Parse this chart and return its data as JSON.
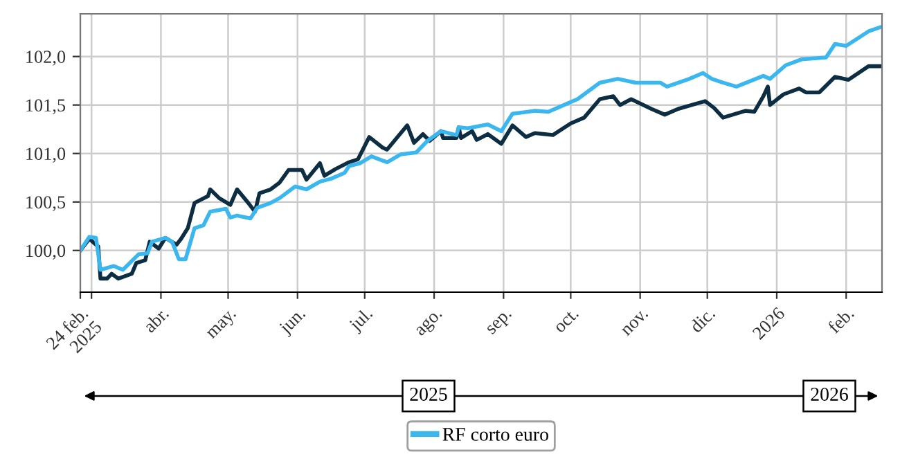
{
  "chart_data": {
    "type": "line",
    "xlim": [
      "2025-02-24",
      "2026-02-17"
    ],
    "ylim": [
      99.57,
      102.44
    ],
    "yticks": [
      {
        "value": 100.0,
        "label": "100,0"
      },
      {
        "value": 100.5,
        "label": "100,5"
      },
      {
        "value": 101.0,
        "label": "101,0"
      },
      {
        "value": 101.5,
        "label": "101,5"
      },
      {
        "value": 102.0,
        "label": "102,0"
      }
    ],
    "xticks": [
      {
        "value": "2025-02-24",
        "label": "24 feb.\n2025"
      },
      {
        "value": "2025-03-01",
        "label": null
      },
      {
        "value": "2025-04-01",
        "label": "abr."
      },
      {
        "value": "2025-05-01",
        "label": "may."
      },
      {
        "value": "2025-06-01",
        "label": "jun."
      },
      {
        "value": "2025-07-01",
        "label": "jul."
      },
      {
        "value": "2025-08-01",
        "label": "ago."
      },
      {
        "value": "2025-09-01",
        "label": "sep."
      },
      {
        "value": "2025-10-01",
        "label": "oct."
      },
      {
        "value": "2025-11-01",
        "label": "nov."
      },
      {
        "value": "2025-12-01",
        "label": "dic."
      },
      {
        "value": "2026-01-01",
        "label": "2026"
      },
      {
        "value": "2026-02-01",
        "label": "feb."
      }
    ],
    "grid": true,
    "legend": "bottom",
    "annotations": [
      "2025",
      "2026"
    ],
    "series": [
      {
        "color": "#0d2d42",
        "x": [
          "2025-02-24",
          "2025-02-28",
          "2025-03-03",
          "2025-03-04",
          "2025-03-05",
          "2025-03-08",
          "2025-03-10",
          "2025-03-13",
          "2025-03-19",
          "2025-03-21",
          "2025-03-25",
          "2025-03-27",
          "2025-03-31",
          "2025-04-03",
          "2025-04-08",
          "2025-04-10",
          "2025-04-13",
          "2025-04-16",
          "2025-04-22",
          "2025-04-23",
          "2025-04-27",
          "2025-05-02",
          "2025-05-05",
          "2025-05-10",
          "2025-05-13",
          "2025-05-15",
          "2025-05-20",
          "2025-05-24",
          "2025-05-28",
          "2025-06-03",
          "2025-06-05",
          "2025-06-11",
          "2025-06-13",
          "2025-06-18",
          "2025-06-24",
          "2025-06-28",
          "2025-07-03",
          "2025-07-09",
          "2025-07-11",
          "2025-07-20",
          "2025-07-23",
          "2025-07-27",
          "2025-07-30",
          "2025-08-04",
          "2025-08-05",
          "2025-08-11",
          "2025-08-12",
          "2025-08-13",
          "2025-08-18",
          "2025-08-20",
          "2025-08-25",
          "2025-08-31",
          "2025-09-05",
          "2025-09-11",
          "2025-09-15",
          "2025-09-23",
          "2025-10-01",
          "2025-10-07",
          "2025-10-14",
          "2025-10-20",
          "2025-10-23",
          "2025-10-28",
          "2025-11-06",
          "2025-11-12",
          "2025-11-18",
          "2025-11-30",
          "2025-12-04",
          "2025-12-08",
          "2025-12-18",
          "2025-12-22",
          "2025-12-26",
          "2025-12-28",
          "2025-12-29",
          "2026-01-04",
          "2026-01-11",
          "2026-01-14",
          "2026-01-20",
          "2026-01-27",
          "2026-02-02",
          "2026-02-11",
          "2026-02-16"
        ],
        "values": [
          100.0,
          100.12,
          100.06,
          100.04,
          99.71,
          99.71,
          99.76,
          99.71,
          99.76,
          99.87,
          99.9,
          100.09,
          100.02,
          100.13,
          100.06,
          100.12,
          100.23,
          100.49,
          100.56,
          100.63,
          100.54,
          100.47,
          100.63,
          100.49,
          100.4,
          100.59,
          100.63,
          100.7,
          100.83,
          100.83,
          100.73,
          100.9,
          100.77,
          100.84,
          100.91,
          100.94,
          101.17,
          101.06,
          101.04,
          101.29,
          101.11,
          101.2,
          101.13,
          101.23,
          101.16,
          101.16,
          101.27,
          101.16,
          101.23,
          101.14,
          101.2,
          101.1,
          101.29,
          101.17,
          101.21,
          101.19,
          101.31,
          101.37,
          101.56,
          101.59,
          101.5,
          101.56,
          101.46,
          101.4,
          101.46,
          101.54,
          101.47,
          101.37,
          101.44,
          101.43,
          101.59,
          101.69,
          101.5,
          101.61,
          101.67,
          101.63,
          101.63,
          101.79,
          101.76,
          101.9,
          101.9
        ]
      },
      {
        "name": "RF corto euro",
        "color": "#3bb7f0",
        "x": [
          "2025-02-24",
          "2025-02-28",
          "2025-03-03",
          "2025-03-05",
          "2025-03-11",
          "2025-03-15",
          "2025-03-22",
          "2025-03-26",
          "2025-03-28",
          "2025-04-03",
          "2025-04-06",
          "2025-04-09",
          "2025-04-12",
          "2025-04-16",
          "2025-04-20",
          "2025-04-23",
          "2025-04-30",
          "2025-05-02",
          "2025-05-05",
          "2025-05-11",
          "2025-05-14",
          "2025-05-20",
          "2025-05-24",
          "2025-05-31",
          "2025-06-05",
          "2025-06-11",
          "2025-06-16",
          "2025-06-22",
          "2025-06-24",
          "2025-06-29",
          "2025-07-04",
          "2025-07-11",
          "2025-07-17",
          "2025-07-24",
          "2025-07-29",
          "2025-08-04",
          "2025-08-11",
          "2025-08-12",
          "2025-08-16",
          "2025-08-25",
          "2025-08-31",
          "2025-09-05",
          "2025-09-15",
          "2025-09-21",
          "2025-09-28",
          "2025-10-04",
          "2025-10-14",
          "2025-10-22",
          "2025-10-30",
          "2025-11-10",
          "2025-11-13",
          "2025-11-23",
          "2025-11-29",
          "2025-12-03",
          "2025-12-08",
          "2025-12-14",
          "2025-12-26",
          "2025-12-29",
          "2026-01-05",
          "2026-01-12",
          "2026-01-23",
          "2026-01-27",
          "2026-02-01",
          "2026-02-11",
          "2026-02-16"
        ],
        "values": [
          100.0,
          100.14,
          100.13,
          99.8,
          99.84,
          99.8,
          99.96,
          99.97,
          100.09,
          100.13,
          100.09,
          99.91,
          99.91,
          100.23,
          100.26,
          100.4,
          100.43,
          100.34,
          100.36,
          100.33,
          100.44,
          100.49,
          100.54,
          100.66,
          100.63,
          100.71,
          100.74,
          100.8,
          100.87,
          100.9,
          100.97,
          100.91,
          100.99,
          101.01,
          101.13,
          101.23,
          101.19,
          101.27,
          101.26,
          101.3,
          101.23,
          101.41,
          101.44,
          101.43,
          101.5,
          101.56,
          101.73,
          101.77,
          101.73,
          101.73,
          101.69,
          101.77,
          101.83,
          101.77,
          101.73,
          101.69,
          101.8,
          101.77,
          101.91,
          101.97,
          101.99,
          102.13,
          102.11,
          102.26,
          102.3
        ]
      }
    ]
  }
}
